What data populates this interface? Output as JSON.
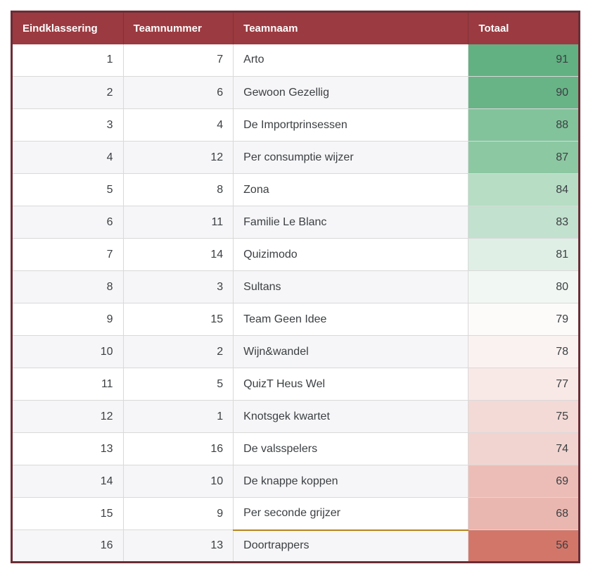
{
  "theme": {
    "header_bg": "#9b3a40",
    "header_text": "#ffffff",
    "outer_border": "#6b2d36",
    "header_divider": "#7e333a",
    "cell_border": "#d9d9d9",
    "zebra_bg": "#f6f6f8",
    "text_color": "#3c4043",
    "accent_border": "#b8831c",
    "scale_green_max": "#61b182",
    "scale_white_mid": "#fbfbfb",
    "scale_red_min": "#d3766a"
  },
  "table": {
    "columns": [
      {
        "key": "rank",
        "label": "Eindklassering"
      },
      {
        "key": "number",
        "label": "Teamnummer"
      },
      {
        "key": "name",
        "label": "Teamnaam"
      },
      {
        "key": "total",
        "label": "Totaal"
      }
    ],
    "rows": [
      {
        "rank": 1,
        "number": 7,
        "name": "Arto",
        "total": 91,
        "total_color": "#61b182"
      },
      {
        "rank": 2,
        "number": 6,
        "name": "Gewoon Gezellig",
        "total": 90,
        "total_color": "#68b487"
      },
      {
        "rank": 3,
        "number": 4,
        "name": "De Importprinsessen",
        "total": 88,
        "total_color": "#82c39b"
      },
      {
        "rank": 4,
        "number": 12,
        "name": "Per consumptie wijzer",
        "total": 87,
        "total_color": "#8cc8a2"
      },
      {
        "rank": 5,
        "number": 8,
        "name": "Zona",
        "total": 84,
        "total_color": "#b7ddc5"
      },
      {
        "rank": 6,
        "number": 11,
        "name": "Familie Le Blanc",
        "total": 83,
        "total_color": "#c2e1ce"
      },
      {
        "rank": 7,
        "number": 14,
        "name": "Quizimodo",
        "total": 81,
        "total_color": "#e0efe6"
      },
      {
        "rank": 8,
        "number": 3,
        "name": "Sultans",
        "total": 80,
        "total_color": "#f1f8f3"
      },
      {
        "rank": 9,
        "number": 15,
        "name": "Team Geen Idee",
        "total": 79,
        "total_color": "#fdfafa"
      },
      {
        "rank": 10,
        "number": 2,
        "name": "Wijn&wandel",
        "total": 78,
        "total_color": "#faf2f1"
      },
      {
        "rank": 11,
        "number": 5,
        "name": "QuizT Heus Wel",
        "total": 77,
        "total_color": "#f8e9e7"
      },
      {
        "rank": 12,
        "number": 1,
        "name": "Knotsgek kwartet",
        "total": 75,
        "total_color": "#f3dad6"
      },
      {
        "rank": 13,
        "number": 16,
        "name": "De valsspelers",
        "total": 74,
        "total_color": "#f1d4d0"
      },
      {
        "rank": 14,
        "number": 10,
        "name": "De knappe koppen",
        "total": 69,
        "total_color": "#ecbdb7"
      },
      {
        "rank": 15,
        "number": 9,
        "name": "Per seconde grijzer",
        "total": 68,
        "total_color": "#eab7b0"
      },
      {
        "rank": 16,
        "number": 13,
        "name": "Doortrappers",
        "total": 56,
        "total_color": "#d3766a",
        "name_top_accent": true
      }
    ]
  }
}
